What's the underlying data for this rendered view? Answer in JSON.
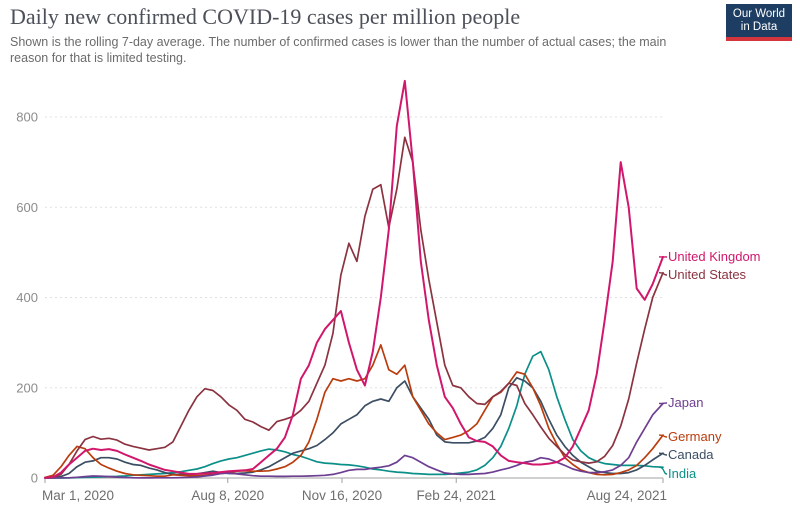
{
  "header": {
    "title": "Daily new confirmed COVID-19 cases per million people",
    "subtitle": "Shown is the rolling 7-day average. The number of confirmed cases is lower than the number of actual cases; the main reason for that is limited testing."
  },
  "logo": {
    "line1": "Our World",
    "line2": "in Data",
    "bg_color": "#1d3d63",
    "accent_color": "#d5353d"
  },
  "axis_colors": {
    "gridline": "#e0e0e0",
    "baseline": "#a1a1a1",
    "y_label": "#8c8c8c",
    "x_label": "#6e6e6e"
  },
  "chart_data": {
    "type": "line",
    "title": "Daily new confirmed COVID-19 cases per million people",
    "xlabel": "",
    "ylabel": "",
    "ylim": [
      0,
      900
    ],
    "grid": "horizontal-dashed",
    "legend_position": "right",
    "yticks": [
      0,
      200,
      400,
      600,
      800
    ],
    "xticks": [
      {
        "label": "Mar 1, 2020",
        "date": "2020-03-01"
      },
      {
        "label": "Aug 8, 2020",
        "date": "2020-08-08"
      },
      {
        "label": "Nov 16, 2020",
        "date": "2020-11-16"
      },
      {
        "label": "Feb 24, 2021",
        "date": "2021-02-24"
      },
      {
        "label": "Aug 24, 2021",
        "date": "2021-08-24"
      }
    ],
    "x": [
      "2020-03-01",
      "2020-03-08",
      "2020-03-15",
      "2020-03-22",
      "2020-03-29",
      "2020-04-05",
      "2020-04-12",
      "2020-04-19",
      "2020-04-26",
      "2020-05-03",
      "2020-05-10",
      "2020-05-17",
      "2020-05-24",
      "2020-05-31",
      "2020-06-07",
      "2020-06-14",
      "2020-06-21",
      "2020-06-28",
      "2020-07-05",
      "2020-07-12",
      "2020-07-19",
      "2020-07-26",
      "2020-08-02",
      "2020-08-09",
      "2020-08-16",
      "2020-08-23",
      "2020-08-30",
      "2020-09-06",
      "2020-09-13",
      "2020-09-20",
      "2020-09-27",
      "2020-10-04",
      "2020-10-11",
      "2020-10-18",
      "2020-10-25",
      "2020-11-01",
      "2020-11-08",
      "2020-11-15",
      "2020-11-22",
      "2020-11-29",
      "2020-12-06",
      "2020-12-13",
      "2020-12-20",
      "2020-12-27",
      "2021-01-03",
      "2021-01-10",
      "2021-01-17",
      "2021-01-24",
      "2021-01-31",
      "2021-02-07",
      "2021-02-14",
      "2021-02-21",
      "2021-02-28",
      "2021-03-07",
      "2021-03-14",
      "2021-03-21",
      "2021-03-28",
      "2021-04-04",
      "2021-04-11",
      "2021-04-18",
      "2021-04-25",
      "2021-05-02",
      "2021-05-09",
      "2021-05-16",
      "2021-05-23",
      "2021-05-30",
      "2021-06-06",
      "2021-06-13",
      "2021-06-20",
      "2021-06-27",
      "2021-07-04",
      "2021-07-11",
      "2021-07-18",
      "2021-07-25",
      "2021-08-01",
      "2021-08-08",
      "2021-08-15",
      "2021-08-24"
    ],
    "series": [
      {
        "name": "United Kingdom",
        "color": "#D0176C",
        "legend_top": 250,
        "values": [
          0.2,
          2,
          12,
          30,
          45,
          60,
          65,
          62,
          64,
          60,
          52,
          45,
          38,
          30,
          24,
          18,
          15,
          12,
          9,
          9,
          10,
          11,
          13,
          15,
          16,
          17,
          20,
          35,
          50,
          65,
          90,
          140,
          220,
          250,
          300,
          330,
          350,
          370,
          300,
          240,
          205,
          280,
          400,
          550,
          780,
          880,
          700,
          480,
          350,
          250,
          180,
          155,
          120,
          90,
          82,
          80,
          70,
          50,
          38,
          35,
          33,
          30,
          30,
          32,
          35,
          45,
          70,
          110,
          150,
          230,
          350,
          480,
          700,
          600,
          420,
          395,
          430,
          490
        ]
      },
      {
        "name": "United States",
        "color": "#8B3340",
        "legend_top": 268,
        "values": [
          0.2,
          1.5,
          8,
          30,
          60,
          85,
          92,
          86,
          88,
          84,
          75,
          70,
          66,
          62,
          65,
          68,
          80,
          115,
          150,
          180,
          198,
          194,
          180,
          162,
          150,
          130,
          124,
          114,
          106,
          125,
          130,
          136,
          150,
          170,
          210,
          250,
          320,
          450,
          520,
          480,
          580,
          640,
          650,
          555,
          640,
          755,
          700,
          550,
          440,
          345,
          250,
          205,
          200,
          180,
          165,
          163,
          180,
          192,
          210,
          205,
          165,
          140,
          113,
          88,
          70,
          52,
          40,
          36,
          33,
          36,
          48,
          72,
          115,
          175,
          255,
          330,
          400,
          455
        ]
      },
      {
        "name": "Japan",
        "color": "#6D3E91",
        "legend_top": 396,
        "values": [
          0.2,
          0.3,
          0.4,
          0.5,
          1.5,
          3,
          4.5,
          4,
          3,
          2,
          1,
          0.5,
          0.3,
          0.3,
          0.4,
          0.4,
          0.5,
          0.8,
          1.5,
          2.5,
          4.5,
          6.5,
          10,
          11,
          9,
          7,
          5,
          4,
          4,
          3.5,
          3.5,
          4,
          4,
          4.5,
          5,
          6,
          8,
          12,
          17,
          19,
          19,
          22,
          24,
          27,
          35,
          50,
          45,
          35,
          25,
          18,
          11,
          9,
          8,
          8,
          9,
          10,
          13,
          18,
          22,
          28,
          35,
          38,
          45,
          42,
          35,
          28,
          20,
          15,
          12,
          12,
          14,
          18,
          28,
          45,
          80,
          110,
          140,
          165
        ]
      },
      {
        "name": "Germany",
        "color": "#BA3D0E",
        "legend_top": 430,
        "values": [
          1,
          6,
          25,
          50,
          70,
          65,
          45,
          30,
          22,
          15,
          10,
          7,
          6,
          5,
          4,
          4,
          7,
          6,
          5,
          5,
          6,
          8,
          10,
          12,
          15,
          16,
          15,
          15,
          16,
          20,
          25,
          35,
          50,
          80,
          130,
          190,
          220,
          215,
          220,
          215,
          220,
          250,
          295,
          240,
          230,
          250,
          180,
          150,
          120,
          100,
          85,
          90,
          95,
          105,
          120,
          150,
          180,
          190,
          210,
          235,
          230,
          200,
          160,
          110,
          75,
          45,
          30,
          18,
          12,
          8,
          7,
          8,
          12,
          18,
          28,
          45,
          65,
          95
        ]
      },
      {
        "name": "Canada",
        "color": "#3C4E63",
        "legend_top": 448,
        "values": [
          0.1,
          0.5,
          3,
          10,
          25,
          35,
          38,
          45,
          45,
          42,
          35,
          30,
          28,
          22,
          18,
          12,
          8,
          8,
          8,
          9,
          12,
          15,
          12,
          10,
          10,
          11,
          13,
          18,
          25,
          35,
          45,
          55,
          60,
          65,
          72,
          85,
          100,
          120,
          130,
          140,
          160,
          170,
          175,
          170,
          200,
          215,
          180,
          155,
          130,
          95,
          80,
          78,
          78,
          78,
          82,
          90,
          110,
          140,
          200,
          222,
          215,
          200,
          170,
          130,
          95,
          70,
          50,
          35,
          25,
          15,
          12,
          10,
          10,
          12,
          18,
          28,
          40,
          55
        ]
      },
      {
        "name": "India",
        "color": "#0B8F88",
        "legend_top": 467,
        "values": [
          0,
          0,
          0.1,
          0.3,
          0.8,
          1.5,
          2,
          2.5,
          3,
          3.5,
          4.5,
          6,
          7,
          8,
          9,
          10,
          12,
          14,
          17,
          20,
          25,
          32,
          38,
          42,
          45,
          50,
          55,
          60,
          64,
          62,
          58,
          52,
          48,
          42,
          36,
          33,
          32,
          30,
          29,
          27,
          24,
          20,
          18,
          15,
          13,
          12,
          10,
          9,
          8,
          8,
          8,
          9,
          11,
          13,
          18,
          28,
          45,
          70,
          110,
          160,
          230,
          270,
          280,
          240,
          180,
          130,
          85,
          60,
          45,
          37,
          32,
          30,
          28,
          28,
          28,
          27,
          25,
          24
        ]
      }
    ]
  }
}
